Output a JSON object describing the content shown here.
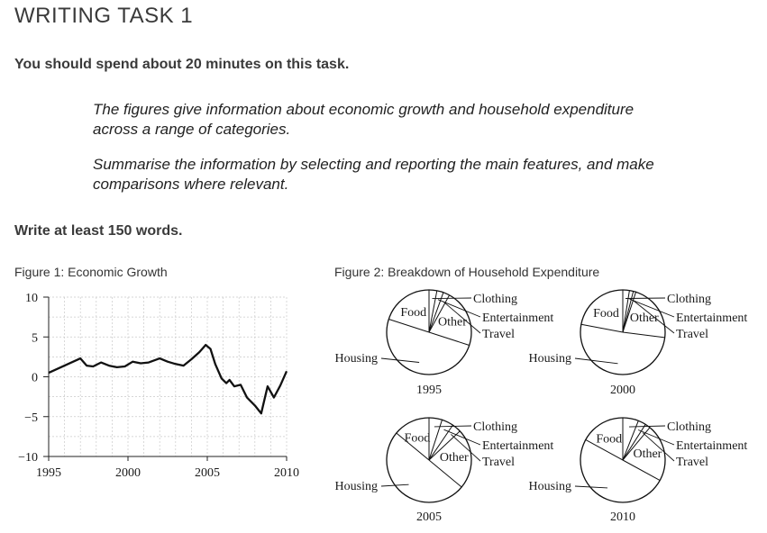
{
  "header": {
    "title": "WRITING TASK 1",
    "time_note": "You should spend about 20 minutes on this task.",
    "task_paragraph_1": "The figures give information about economic growth and household expenditure across a range of categories.",
    "task_paragraph_2": "Summarise the information by selecting and reporting the main features, and make comparisons where relevant.",
    "word_note": "Write at least 150 words."
  },
  "chart_data": [
    {
      "type": "line",
      "title": "Figure 1: Economic Growth",
      "xlabel": "",
      "ylabel": "",
      "xlim": [
        1995,
        2010
      ],
      "ylim": [
        -10,
        10
      ],
      "x_ticks": [
        1995,
        2000,
        2005,
        2010
      ],
      "y_ticks": [
        10,
        5,
        0,
        -5,
        -10
      ],
      "grid": true,
      "color": "#111111",
      "x": [
        1995,
        1996,
        1997,
        1997.4,
        1997.8,
        1998.3,
        1998.8,
        1999.3,
        1999.8,
        2000.3,
        2000.8,
        2001.3,
        2002,
        2002.5,
        2003,
        2003.5,
        2004,
        2004.5,
        2004.9,
        2005.2,
        2005.5,
        2005.9,
        2006.2,
        2006.4,
        2006.7,
        2007.1,
        2007.5,
        2008,
        2008.4,
        2008.8,
        2009.2,
        2009.6,
        2010
      ],
      "y": [
        0.5,
        1.4,
        2.3,
        1.4,
        1.3,
        1.8,
        1.4,
        1.2,
        1.3,
        1.9,
        1.7,
        1.8,
        2.3,
        1.9,
        1.6,
        1.4,
        2.2,
        3.1,
        4.0,
        3.5,
        1.6,
        -0.2,
        -0.8,
        -0.4,
        -1.2,
        -1.0,
        -2.6,
        -3.6,
        -4.6,
        -1.2,
        -2.6,
        -1.1,
        0.7
      ]
    },
    {
      "type": "pie",
      "title": "Figure 2: Breakdown of Household Expenditure",
      "categories": [
        "Food",
        "Clothing",
        "Entertainment",
        "Travel",
        "Other",
        "Housing"
      ],
      "pies": [
        {
          "label": "1995",
          "values": [
            20,
            3,
            2.5,
            2.5,
            22,
            50
          ]
        },
        {
          "label": "2000",
          "values": [
            22,
            2.5,
            1.5,
            1,
            22,
            51
          ]
        },
        {
          "label": "2005",
          "values": [
            14,
            5,
            4.5,
            3.5,
            23,
            50
          ]
        },
        {
          "label": "2010",
          "values": [
            17,
            6,
            3,
            2,
            22,
            50
          ]
        }
      ]
    }
  ]
}
